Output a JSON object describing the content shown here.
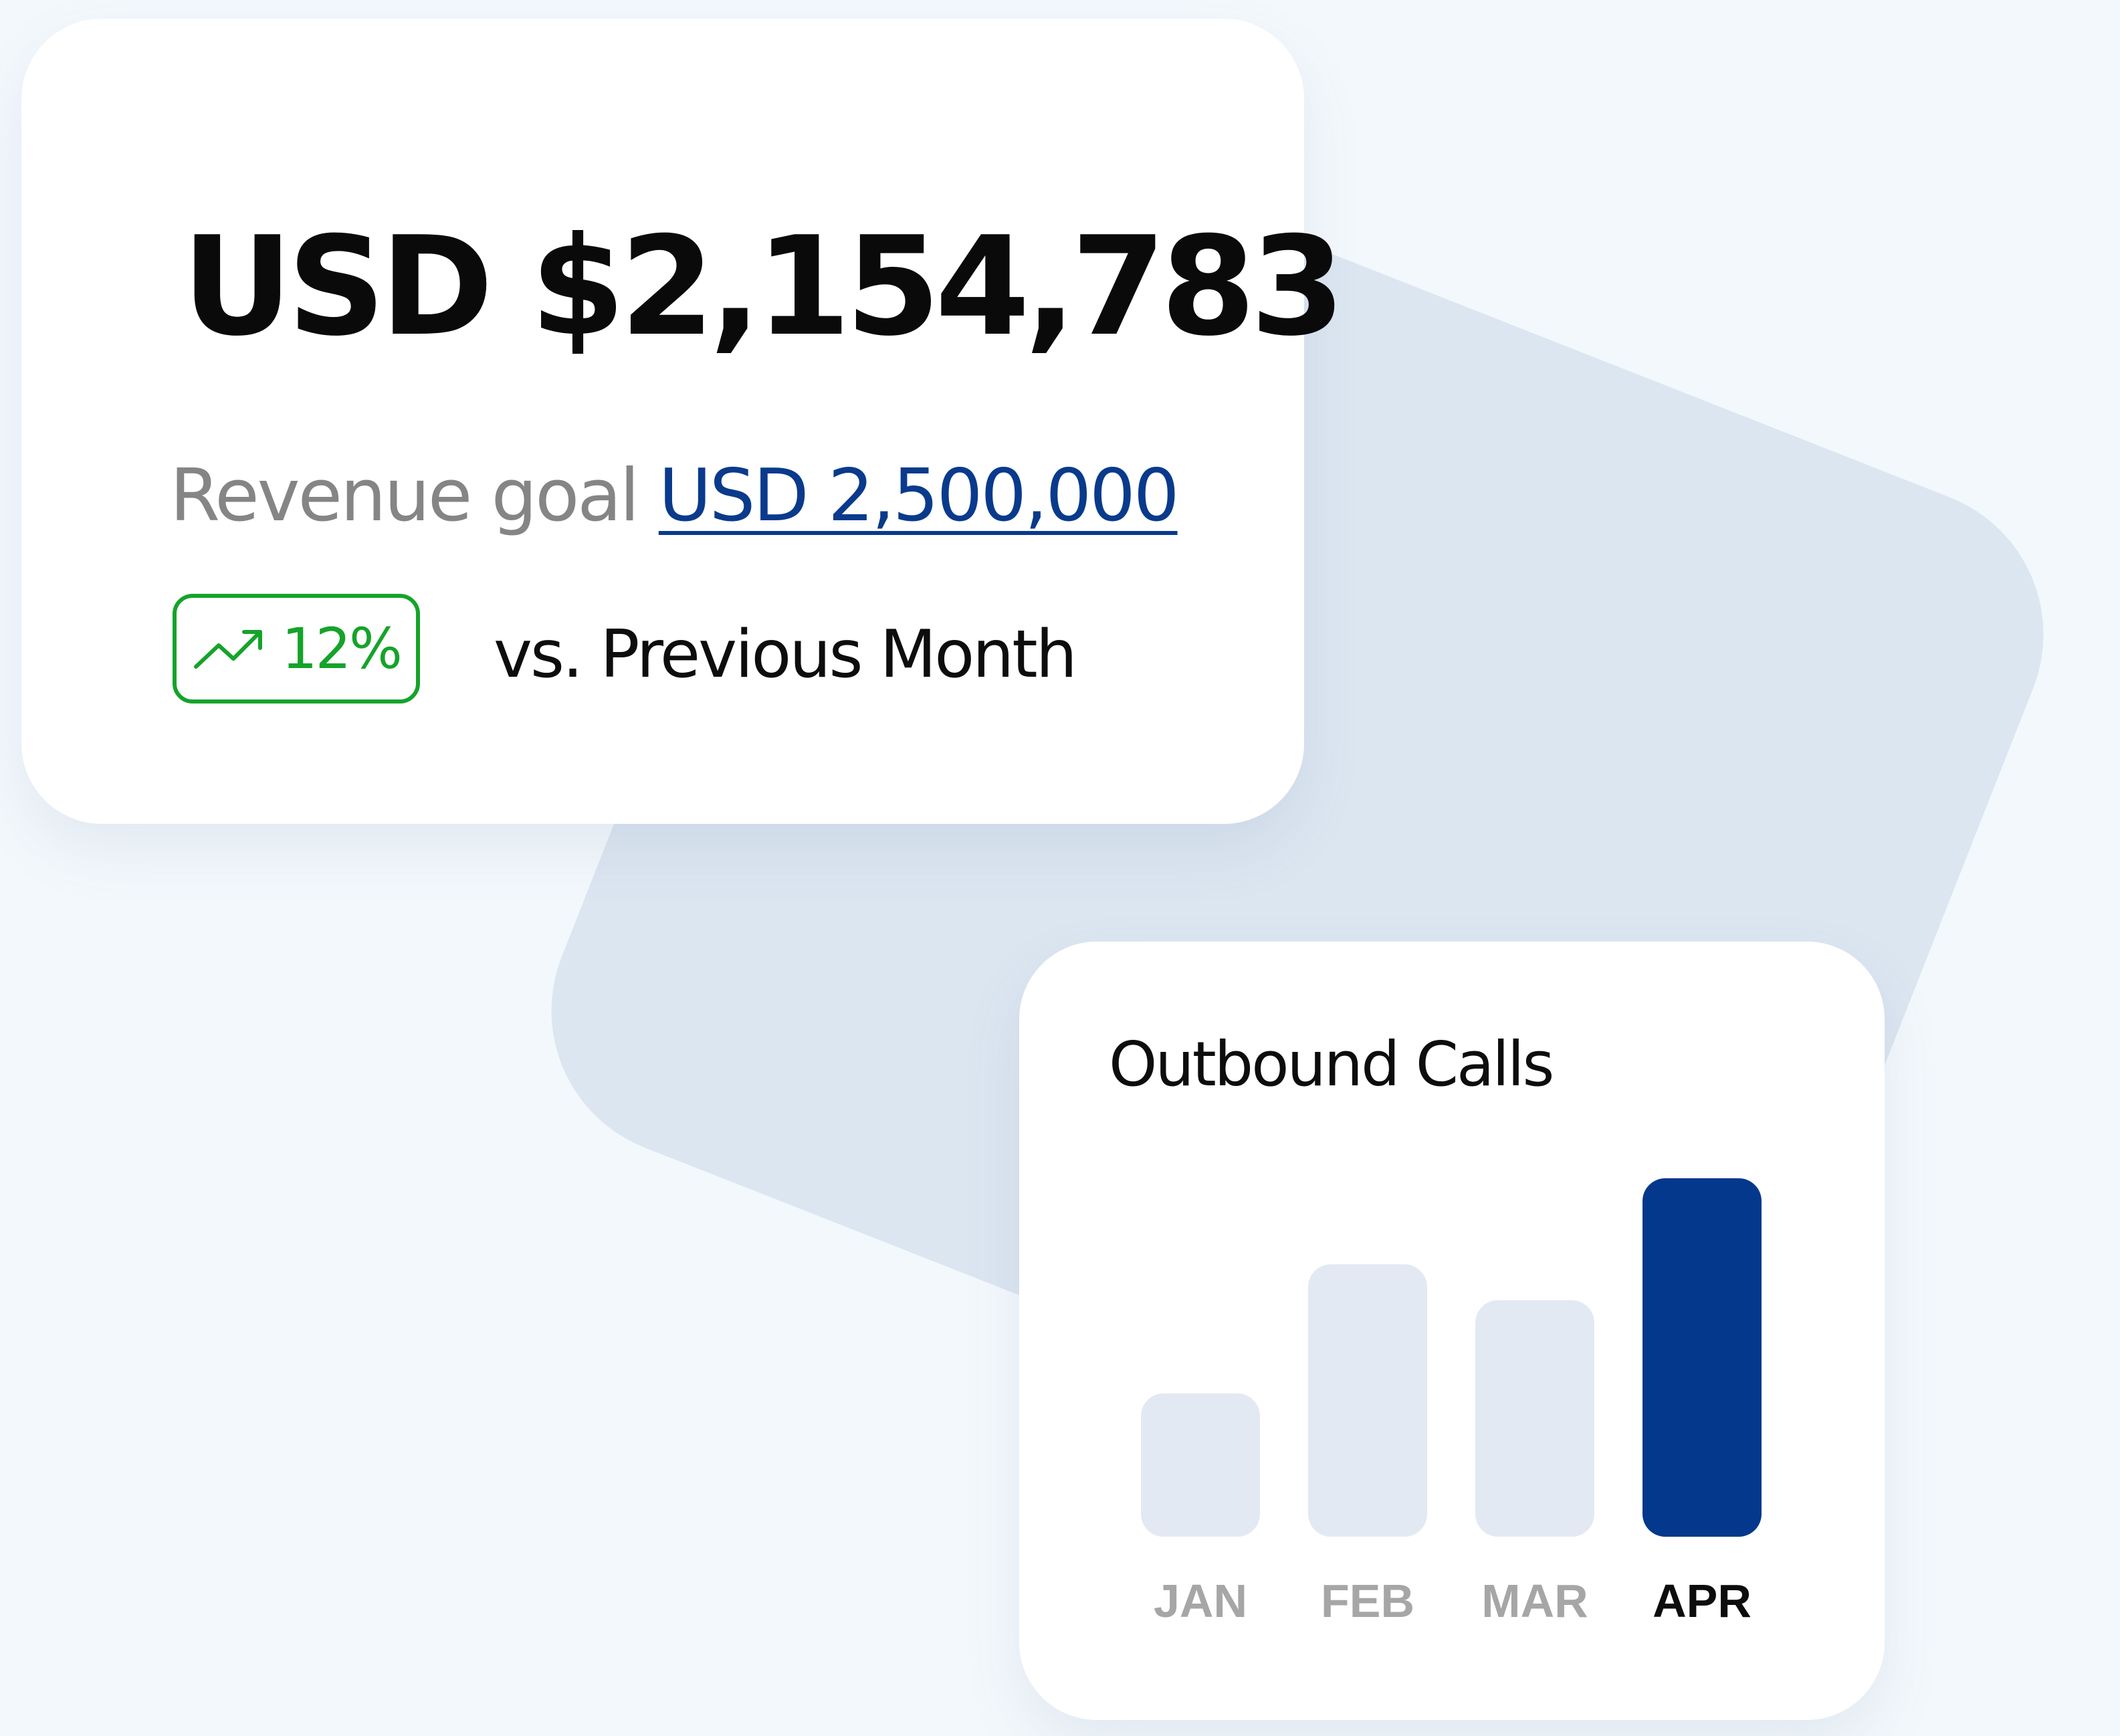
{
  "revenue": {
    "amount": "USD $2,154,783",
    "goal_label": "Revenue goal",
    "goal_value": "USD 2,500,000",
    "change": "12%",
    "change_icon": "trending-up-icon",
    "compare_label": "vs. Previous Month"
  },
  "colors": {
    "accent": "#0a3a8c",
    "positive": "#15a32a",
    "bar_default": "#e3e9f2",
    "bar_highlight": "#03388c",
    "tick_default": "#a6a6a6",
    "tick_highlight": "#0d0d0d"
  },
  "chart_data": {
    "type": "bar",
    "title": "Outbound Calls",
    "categories": [
      "JAN",
      "FEB",
      "MAR",
      "APR"
    ],
    "values": [
      40,
      76,
      66,
      100
    ],
    "highlight": "APR",
    "ylim": [
      0,
      100
    ],
    "grid": false,
    "axis_values_shown": false
  }
}
